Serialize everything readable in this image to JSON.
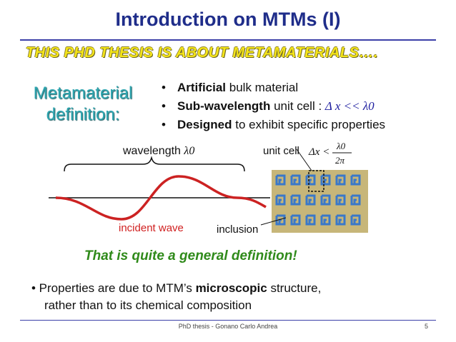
{
  "title": "Introduction on MTMs (I)",
  "subtitle": "THIS PHD THESIS IS ABOUT METAMATERIALS….",
  "definition": {
    "line1": "Metamaterial",
    "line2": "definition:"
  },
  "bullets": [
    {
      "bold": "Artificial",
      "rest": " bulk material"
    },
    {
      "bold": "Sub-wavelength",
      "rest": " unit cell : ",
      "math": "Δ x << λ0"
    },
    {
      "bold": "Designed",
      "rest": " to exhibit specific properties"
    }
  ],
  "figure": {
    "wavelength_label": "wavelength ",
    "wavelength_symbol": "λ0",
    "unit_cell_label": "unit cell",
    "unit_cell_formula_lhs": "Δx <",
    "unit_cell_formula_num": "λ0",
    "unit_cell_formula_den": "2π",
    "incident_wave_label": "incident wave",
    "inclusion_label": "inclusion",
    "colors": {
      "wave": "#cc2222",
      "grid_bg": "#c7b679",
      "inclusion": "#3a78c9"
    }
  },
  "general_definition": "That is quite a general definition!",
  "properties": {
    "prefix": " Properties are due to MTM’s ",
    "bold": "microscopic",
    "suffix": " structure,",
    "line2": "rather than to its chemical composition"
  },
  "footer": {
    "text": "PhD thesis - Gonano Carlo Andrea",
    "page": "5"
  }
}
